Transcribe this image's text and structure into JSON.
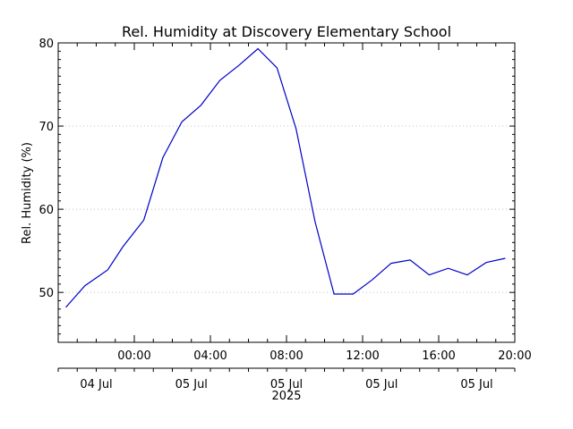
{
  "chart_data": {
    "type": "line",
    "title": "Rel. Humidity at Discovery Elementary School",
    "ylabel": "Rel. Humidity (%)",
    "xlabel": "",
    "ylim": [
      44,
      80
    ],
    "y_ticks": [
      50,
      60,
      70,
      80
    ],
    "x_unit": "hour offset from 00:00 on 05 Jul 2025",
    "xlim": [
      -4,
      20
    ],
    "time_ticks": [
      {
        "x": 0,
        "label": "00:00"
      },
      {
        "x": 4,
        "label": "04:00"
      },
      {
        "x": 8,
        "label": "08:00"
      },
      {
        "x": 12,
        "label": "12:00"
      },
      {
        "x": 16,
        "label": "16:00"
      },
      {
        "x": 20,
        "label": "20:00"
      }
    ],
    "date_ticks": [
      {
        "x": -2,
        "label": "04 Jul"
      },
      {
        "x": 3,
        "label": "05 Jul"
      },
      {
        "x": 8,
        "label": "05 Jul"
      },
      {
        "x": 13,
        "label": "05 Jul"
      },
      {
        "x": 18,
        "label": "05 Jul"
      }
    ],
    "year_label": "2025",
    "grid": true,
    "color": "#0000c8",
    "series": [
      {
        "x": [
          -3.6,
          -2.6,
          -1.4,
          -0.6,
          0.5,
          1.5,
          2.5,
          3.5,
          4.5,
          5.5,
          6.5,
          7.5,
          8.5,
          9.5,
          10.5,
          11.5,
          12.5,
          13.5,
          14.5,
          15.5,
          16.5,
          17.5,
          18.5,
          19.5
        ],
        "y": [
          48.2,
          50.8,
          52.7,
          55.5,
          58.7,
          66.2,
          70.5,
          72.5,
          75.5,
          77.3,
          79.3,
          77.0,
          69.7,
          58.5,
          49.8,
          49.8,
          51.5,
          53.5,
          53.9,
          52.1,
          52.9,
          52.1,
          53.6,
          54.1
        ]
      }
    ]
  }
}
